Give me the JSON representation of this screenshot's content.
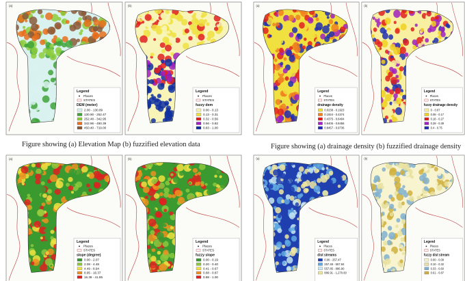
{
  "captions": [
    "Figure showing (a) Elevation Map (b) fuzzified elevation data",
    "Figure showing (a) drainage density (b) fuzzified drainage density"
  ],
  "panels": [
    {
      "letter": "(a)",
      "legend": {
        "title": "Legend",
        "places": "Places",
        "states": "STATES",
        "name": "DEM (meter)",
        "classes": [
          {
            "label": "2.00 - 130.89",
            "color": "#d9f2f0"
          },
          {
            "label": "130.90 - 252.47",
            "color": "#3fa43a"
          },
          {
            "label": "252.48 - 342.95",
            "color": "#8ccc3c"
          },
          {
            "label": "342.96 - 450.39",
            "color": "#e8701c"
          },
          {
            "label": "450.40 - 719.00",
            "color": "#8a5a3a"
          }
        ]
      }
    },
    {
      "letter": "(b)",
      "legend": {
        "title": "Legend",
        "places": "Places",
        "states": "STATES",
        "name": "fuzzy dem",
        "classes": [
          {
            "label": "0.00 - 0.13",
            "color": "#f8f4b8"
          },
          {
            "label": "0.13 - 0.31",
            "color": "#f0e040"
          },
          {
            "label": "0.32 - 0.56",
            "color": "#e02020"
          },
          {
            "label": "0.56 - 0.82",
            "color": "#a020c0"
          },
          {
            "label": "0.83 - 1.00",
            "color": "#1030a0"
          }
        ]
      }
    },
    {
      "letter": "(a)",
      "legend": {
        "title": "Legend",
        "places": "Places",
        "states": "STATES",
        "name": "drainage density",
        "classes": [
          {
            "label": "0.0238 - 0.1923",
            "color": "#f0e040"
          },
          {
            "label": "0.1924 - 0.4374",
            "color": "#f08020"
          },
          {
            "label": "0.4375 - 0.6404",
            "color": "#e02020"
          },
          {
            "label": "0.6405 - 0.8456",
            "color": "#a020c0"
          },
          {
            "label": "0.8457 - 0.9736",
            "color": "#2030b0"
          }
        ]
      }
    },
    {
      "letter": "(b)",
      "legend": {
        "title": "Legend",
        "places": "Places",
        "states": "STATES",
        "name": "fuzzy drainage density",
        "classes": [
          {
            "label": "0 - 0.07",
            "color": "#f8f0a0"
          },
          {
            "label": "0.08 - 0.17",
            "color": "#f0d020"
          },
          {
            "label": "0.18 - 0.27",
            "color": "#e02020"
          },
          {
            "label": "0.28 - 0.39",
            "color": "#a020c0"
          },
          {
            "label": "0.4 - 0.75",
            "color": "#2030b0"
          }
        ]
      }
    },
    {
      "letter": "(a)",
      "legend": {
        "title": "Legend",
        "places": "Places",
        "states": "STATES",
        "name": "slope (degree)",
        "classes": [
          {
            "label": "0.00 - 2.07",
            "color": "#3a9a30"
          },
          {
            "label": "2.08 - 4.48",
            "color": "#8cc83c"
          },
          {
            "label": "4.49 - 8.94",
            "color": "#f0e040"
          },
          {
            "label": "8.95 - 16.37",
            "color": "#f09020"
          },
          {
            "label": "16.38 - 41.95",
            "color": "#e02020"
          }
        ]
      }
    },
    {
      "letter": "(b)",
      "legend": {
        "title": "Legend",
        "places": "Places",
        "states": "STATES",
        "name": "fuzzy slope",
        "classes": [
          {
            "label": "0.00 - 0.19",
            "color": "#3a9a30"
          },
          {
            "label": "0.20 - 0.40",
            "color": "#8cc83c"
          },
          {
            "label": "0.41 - 0.67",
            "color": "#f0e040"
          },
          {
            "label": "0.68 - 0.87",
            "color": "#f09020"
          },
          {
            "label": "0.88 - 1.00",
            "color": "#e02020"
          }
        ]
      }
    },
    {
      "letter": "(a)",
      "legend": {
        "title": "Legend",
        "places": "Places",
        "states": "STATES",
        "name": "dist streams",
        "classes": [
          {
            "label": "0.00 - 257.47",
            "color": "#2040b0"
          },
          {
            "label": "257.48 - 557.84",
            "color": "#60a8e0"
          },
          {
            "label": "557.85 - 886.90",
            "color": "#c8e8f0"
          },
          {
            "label": "886.91 - 1,270.60",
            "color": "#f0e8a0"
          }
        ]
      }
    },
    {
      "letter": "(b)",
      "legend": {
        "title": "Legend",
        "places": "Places",
        "states": "STATES",
        "name": "fuzzy dist stream",
        "classes": [
          {
            "label": "0.00 - 0.09",
            "color": "#f8f4d0"
          },
          {
            "label": "0.10 - 0.32",
            "color": "#e8e0a0"
          },
          {
            "label": "0.33 - 0.60",
            "color": "#80b0d0"
          },
          {
            "label": "0.61 - 0.87",
            "color": "#d0b040"
          }
        ]
      }
    }
  ]
}
